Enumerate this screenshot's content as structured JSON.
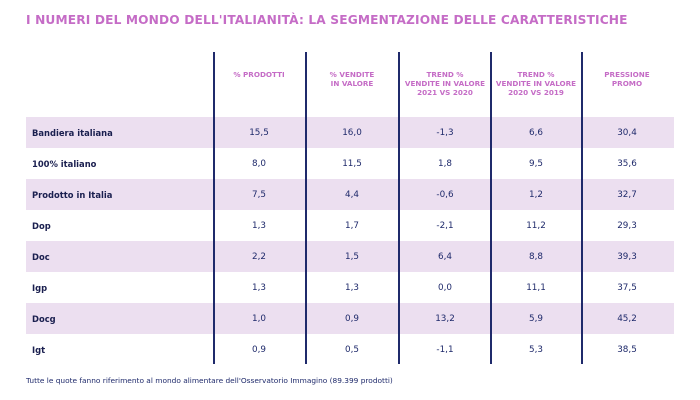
{
  "title": "I NUMERI DEL MONDO DELL'ITALIANITÀ: LA SEGMENTAZIONE DELLE CARATTERISTICHE",
  "columns": [
    [
      "% PRODOTTI"
    ],
    [
      "% VENDITE",
      "IN VALORE"
    ],
    [
      "TREND %",
      "VENDITE IN VALORE",
      "2021 VS 2020"
    ],
    [
      "TREND %",
      "VENDITE IN VALORE",
      "2020 VS 2019"
    ],
    [
      "PRESSIONE",
      "PROMO"
    ]
  ],
  "rows": [
    {
      "label": "Bandiera italiana",
      "values": [
        "15,5",
        "16,0",
        "-1,3",
        "6,6",
        "30,4"
      ]
    },
    {
      "label": "100% italiano",
      "values": [
        "8,0",
        "11,5",
        "1,8",
        "9,5",
        "35,6"
      ]
    },
    {
      "label": "Prodotto in Italia",
      "values": [
        "7,5",
        "4,4",
        "-0,6",
        "1,2",
        "32,7"
      ]
    },
    {
      "label": "Dop",
      "values": [
        "1,3",
        "1,7",
        "-2,1",
        "11,2",
        "29,3"
      ]
    },
    {
      "label": "Doc",
      "values": [
        "2,2",
        "1,5",
        "6,4",
        "8,8",
        "39,3"
      ]
    },
    {
      "label": "Igp",
      "values": [
        "1,3",
        "1,3",
        "0,0",
        "11,1",
        "37,5"
      ]
    },
    {
      "label": "Docg",
      "values": [
        "1,0",
        "0,9",
        "13,2",
        "5,9",
        "45,2"
      ]
    },
    {
      "label": "Igt",
      "values": [
        "0,9",
        "0,5",
        "-1,1",
        "5,3",
        "38,5"
      ]
    }
  ],
  "footnote": "Tutte le quote fanno riferimento al mondo alimentare dell'Osservatorio Immagino (89.399 prodotti)",
  "colors": {
    "accent": "#c56cc6",
    "row_highlight": "#ecdff0",
    "text": "#1f2a6b",
    "divider": "#1f2a6b"
  }
}
